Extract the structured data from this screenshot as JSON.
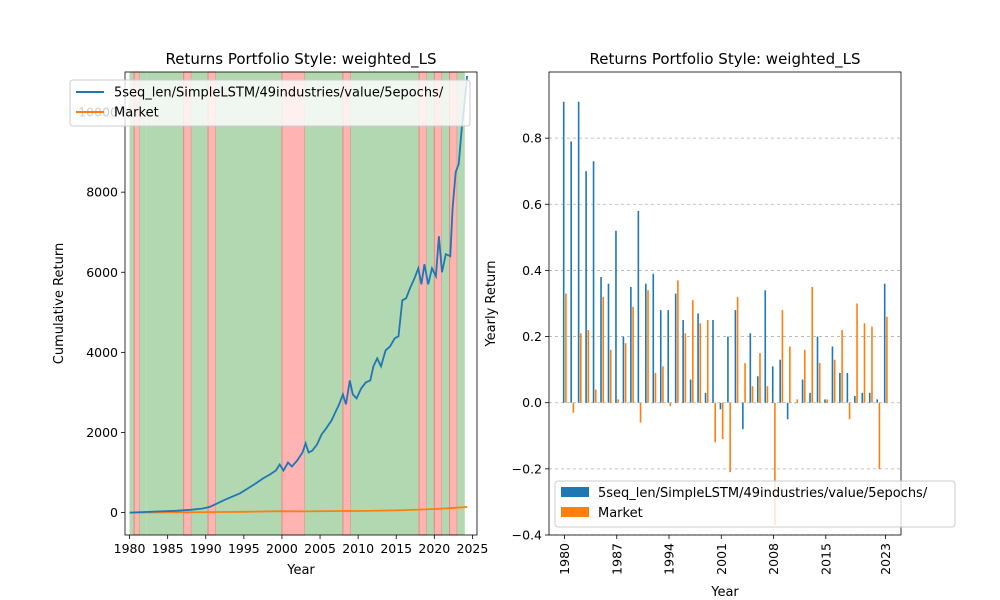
{
  "chart_data": [
    {
      "type": "line",
      "title": "Returns Portfolio Style: weighted_LS",
      "xlabel": "Year",
      "ylabel": "Cumulative Return",
      "xlim": [
        1979.4,
        2025.6
      ],
      "ylim": [
        -560,
        11000
      ],
      "xticks": [
        1980,
        1985,
        1990,
        1995,
        2000,
        2005,
        2010,
        2015,
        2020,
        2025
      ],
      "yticks": [
        0,
        2000,
        4000,
        6000,
        8000,
        10000
      ],
      "grid": false,
      "legend_position": "top-left",
      "regimes": [
        {
          "start": 1980.0,
          "end": 1980.6,
          "state": "up"
        },
        {
          "start": 1980.6,
          "end": 1981.3,
          "state": "down"
        },
        {
          "start": 1981.3,
          "end": 1982.2,
          "state": "up"
        },
        {
          "start": 1982.2,
          "end": 1987.1,
          "state": "up"
        },
        {
          "start": 1987.1,
          "end": 1988.1,
          "state": "down"
        },
        {
          "start": 1988.1,
          "end": 1990.3,
          "state": "up"
        },
        {
          "start": 1990.3,
          "end": 1991.3,
          "state": "down"
        },
        {
          "start": 1991.3,
          "end": 2000.0,
          "state": "up"
        },
        {
          "start": 2000.0,
          "end": 2003.0,
          "state": "down"
        },
        {
          "start": 2003.0,
          "end": 2008.0,
          "state": "up"
        },
        {
          "start": 2008.0,
          "end": 2009.0,
          "state": "down"
        },
        {
          "start": 2009.0,
          "end": 2018.0,
          "state": "up"
        },
        {
          "start": 2018.0,
          "end": 2019.0,
          "state": "down"
        },
        {
          "start": 2019.0,
          "end": 2020.0,
          "state": "up"
        },
        {
          "start": 2020.0,
          "end": 2021.0,
          "state": "down"
        },
        {
          "start": 2021.0,
          "end": 2022.0,
          "state": "up"
        },
        {
          "start": 2022.0,
          "end": 2023.0,
          "state": "down"
        },
        {
          "start": 2023.0,
          "end": 2024.0,
          "state": "up"
        }
      ],
      "series": [
        {
          "name": "5seq_len/SimpleLSTM/49industries/value/5epochs/",
          "color": "#1f77b4",
          "points": [
            [
              1980.0,
              0
            ],
            [
              1982.0,
              15
            ],
            [
              1984.0,
              30
            ],
            [
              1986.0,
              45
            ],
            [
              1988.0,
              70
            ],
            [
              1989.5,
              100
            ],
            [
              1990.5,
              140
            ],
            [
              1991.5,
              230
            ],
            [
              1992.5,
              320
            ],
            [
              1993.5,
              400
            ],
            [
              1994.5,
              480
            ],
            [
              1995.5,
              600
            ],
            [
              1996.5,
              720
            ],
            [
              1997.5,
              850
            ],
            [
              1998.5,
              960
            ],
            [
              1999.2,
              1050
            ],
            [
              1999.7,
              1200
            ],
            [
              2000.2,
              1050
            ],
            [
              2000.8,
              1250
            ],
            [
              2001.3,
              1150
            ],
            [
              2002.0,
              1300
            ],
            [
              2002.7,
              1500
            ],
            [
              2003.1,
              1730
            ],
            [
              2003.5,
              1500
            ],
            [
              2004.0,
              1550
            ],
            [
              2004.6,
              1700
            ],
            [
              2005.2,
              1950
            ],
            [
              2005.8,
              2100
            ],
            [
              2006.5,
              2300
            ],
            [
              2007.0,
              2500
            ],
            [
              2007.5,
              2700
            ],
            [
              2008.0,
              2950
            ],
            [
              2008.4,
              2700
            ],
            [
              2008.9,
              3300
            ],
            [
              2009.3,
              2950
            ],
            [
              2009.8,
              2850
            ],
            [
              2010.4,
              3100
            ],
            [
              2011.0,
              3250
            ],
            [
              2011.6,
              3300
            ],
            [
              2012.0,
              3650
            ],
            [
              2012.5,
              3850
            ],
            [
              2013.0,
              3650
            ],
            [
              2013.6,
              4050
            ],
            [
              2014.2,
              4150
            ],
            [
              2014.8,
              4350
            ],
            [
              2015.3,
              4400
            ],
            [
              2015.8,
              5300
            ],
            [
              2016.3,
              5350
            ],
            [
              2016.8,
              5600
            ],
            [
              2017.4,
              5850
            ],
            [
              2017.9,
              6100
            ],
            [
              2018.3,
              5700
            ],
            [
              2018.7,
              6200
            ],
            [
              2019.2,
              5700
            ],
            [
              2019.7,
              6100
            ],
            [
              2020.2,
              5900
            ],
            [
              2020.6,
              6900
            ],
            [
              2021.0,
              6000
            ],
            [
              2021.5,
              6450
            ],
            [
              2022.1,
              6400
            ],
            [
              2022.4,
              7600
            ],
            [
              2022.8,
              8500
            ],
            [
              2023.2,
              8700
            ],
            [
              2023.6,
              9600
            ],
            [
              2024.0,
              10300
            ],
            [
              2024.3,
              10900
            ]
          ]
        },
        {
          "name": "Market",
          "color": "#ff7f0e",
          "points": [
            [
              1980.0,
              0
            ],
            [
              1985.0,
              5
            ],
            [
              1990.0,
              12
            ],
            [
              1995.0,
              20
            ],
            [
              2000.0,
              35
            ],
            [
              2003.0,
              30
            ],
            [
              2008.0,
              38
            ],
            [
              2010.0,
              40
            ],
            [
              2015.0,
              55
            ],
            [
              2018.0,
              75
            ],
            [
              2020.0,
              90
            ],
            [
              2022.0,
              110
            ],
            [
              2024.3,
              140
            ]
          ]
        }
      ]
    },
    {
      "type": "bar",
      "title": "Returns Portfolio Style: weighted_LS",
      "xlabel": "Year",
      "ylabel": "Yearly Return",
      "ylim": [
        -0.4,
        1.0
      ],
      "yticks": [
        -0.4,
        -0.2,
        0.0,
        0.2,
        0.4,
        0.6,
        0.8
      ],
      "xticks": [
        1980,
        1987,
        1994,
        2001,
        2008,
        2015,
        2023
      ],
      "grid": "y-dashed",
      "legend_position": "lower-left",
      "categories": [
        1980,
        1981,
        1982,
        1983,
        1984,
        1985,
        1986,
        1987,
        1988,
        1989,
        1990,
        1991,
        1992,
        1993,
        1994,
        1995,
        1996,
        1997,
        1998,
        1999,
        2000,
        2001,
        2002,
        2003,
        2004,
        2005,
        2006,
        2007,
        2008,
        2009,
        2010,
        2011,
        2012,
        2013,
        2014,
        2015,
        2016,
        2017,
        2018,
        2019,
        2020,
        2021,
        2022,
        2023
      ],
      "series": [
        {
          "name": "5seq_len/SimpleLSTM/49industries/value/5epochs/",
          "color": "#1f77b4",
          "values": [
            0.91,
            0.79,
            0.91,
            0.7,
            0.73,
            0.38,
            0.36,
            0.52,
            0.2,
            0.35,
            0.58,
            0.36,
            0.39,
            0.28,
            0.28,
            0.33,
            0.25,
            0.07,
            0.27,
            0.03,
            0.25,
            -0.02,
            0.2,
            0.28,
            -0.08,
            0.21,
            0.08,
            0.34,
            0.11,
            0.13,
            -0.05,
            0.0,
            0.07,
            0.03,
            0.2,
            0.01,
            0.17,
            0.09,
            0.09,
            0.02,
            0.03,
            0.03,
            0.01,
            0.36
          ]
        },
        {
          "name": "Market",
          "color": "#ff7f0e",
          "values": [
            0.33,
            -0.03,
            0.21,
            0.22,
            0.04,
            0.32,
            0.16,
            0.01,
            0.18,
            0.29,
            -0.06,
            0.34,
            0.09,
            0.11,
            -0.01,
            0.37,
            0.21,
            0.31,
            0.24,
            0.25,
            -0.12,
            -0.11,
            -0.21,
            0.32,
            0.12,
            0.05,
            0.15,
            0.05,
            -0.37,
            0.28,
            0.17,
            0.01,
            0.16,
            0.35,
            0.12,
            0.01,
            0.13,
            0.22,
            -0.05,
            0.3,
            0.24,
            0.23,
            -0.2,
            0.26
          ]
        }
      ]
    }
  ]
}
